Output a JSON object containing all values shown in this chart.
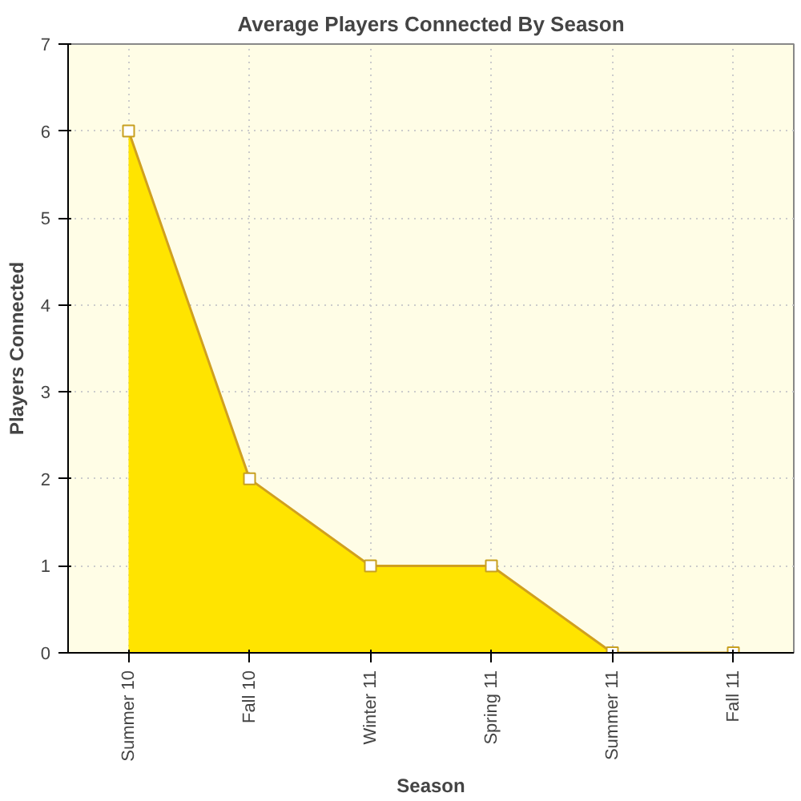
{
  "chart_data": {
    "type": "area",
    "title": "Average Players Connected By Season",
    "xlabel": "Season",
    "ylabel": "Players Connected",
    "categories": [
      "Summer 10",
      "Fall 10",
      "Winter 11",
      "Spring 11",
      "Summer 11",
      "Fall 11"
    ],
    "series": [
      {
        "color": "#ffe400",
        "values": [
          6,
          2,
          1,
          1,
          0,
          0
        ]
      }
    ],
    "ylim": [
      0,
      7
    ],
    "yticks": [
      0,
      1,
      2,
      3,
      4,
      5,
      6,
      7
    ],
    "grid": true,
    "marker": "square"
  }
}
